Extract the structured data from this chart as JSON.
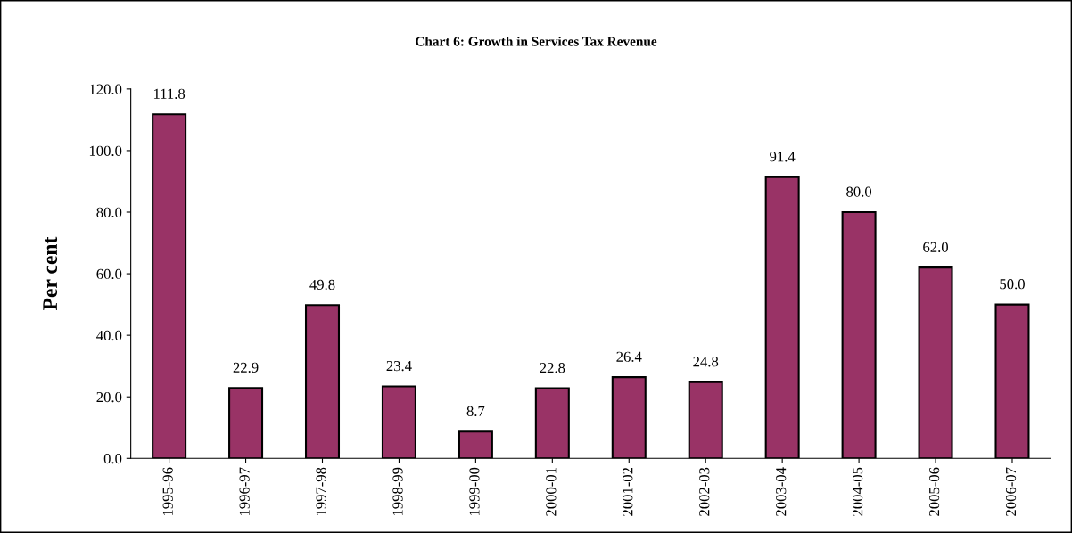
{
  "chart_data": {
    "type": "bar",
    "title": "Chart 6: Growth in Services Tax Revenue",
    "ylabel": "Per cent",
    "categories": [
      "1995-96",
      "1996-97",
      "1997-98",
      "1998-99",
      "1999-00",
      "2000-01",
      "2001-02",
      "2002-03",
      "2003-04",
      "2004-05",
      "2005-06",
      "2006-07"
    ],
    "values": [
      111.8,
      22.9,
      49.8,
      23.4,
      8.7,
      22.8,
      26.4,
      24.8,
      91.4,
      80.0,
      62.0,
      50.0
    ],
    "value_labels": [
      "111.8",
      "22.9",
      "49.8",
      "23.4",
      "8.7",
      "22.8",
      "26.4",
      "24.8",
      "91.4",
      "80.0",
      "62.0",
      "50.0"
    ],
    "color": "#993366",
    "ylim": [
      0,
      120
    ],
    "yticks": [
      {
        "value": 0,
        "label": "0.0"
      },
      {
        "value": 20,
        "label": "20.0"
      },
      {
        "value": 40,
        "label": "40.0"
      },
      {
        "value": 60,
        "label": "60.0"
      },
      {
        "value": 80,
        "label": "80.0"
      },
      {
        "value": 100,
        "label": "100.0"
      },
      {
        "value": 120,
        "label": "120.0"
      }
    ],
    "grid": false,
    "legend": false
  }
}
